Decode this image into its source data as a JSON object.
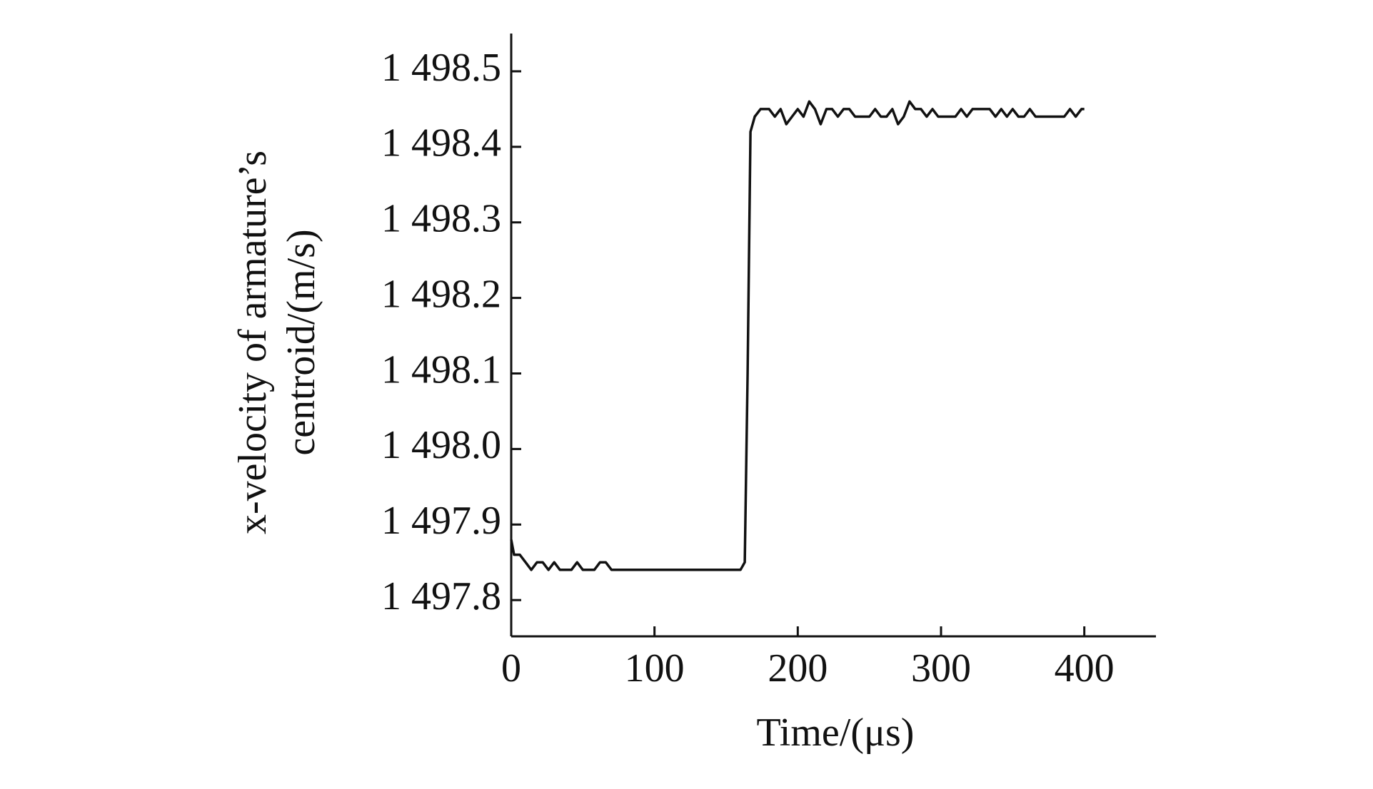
{
  "chart_data": {
    "type": "line",
    "xlabel": "Time/(μs)",
    "ylabel": [
      "x-velocity of armature’s",
      "centroid/(m/s)"
    ],
    "xlim": [
      0,
      450
    ],
    "xticks": [
      0,
      100,
      200,
      300,
      400
    ],
    "ylim": [
      1497.752,
      1498.55
    ],
    "yticks": [
      {
        "value": 1497.8,
        "label": "1 497.8"
      },
      {
        "value": 1497.9,
        "label": "1 497.9"
      },
      {
        "value": 1498.0,
        "label": "1 498.0"
      },
      {
        "value": 1498.1,
        "label": "1 498.1"
      },
      {
        "value": 1498.2,
        "label": "1 498.2"
      },
      {
        "value": 1498.3,
        "label": "1 498.3"
      },
      {
        "value": 1498.4,
        "label": "1 498.4"
      },
      {
        "value": 1498.5,
        "label": "1 498.5"
      }
    ],
    "series": [
      {
        "color": "#111111",
        "x": [
          0,
          2,
          6,
          10,
          14,
          18,
          22,
          26,
          30,
          34,
          38,
          42,
          46,
          50,
          54,
          58,
          62,
          66,
          70,
          160,
          163,
          165,
          167,
          170,
          174,
          180,
          184,
          188,
          192,
          196,
          200,
          204,
          208,
          212,
          216,
          220,
          224,
          228,
          232,
          236,
          240,
          250,
          254,
          258,
          262,
          266,
          270,
          274,
          278,
          282,
          286,
          290,
          294,
          298,
          310,
          314,
          318,
          322,
          334,
          338,
          342,
          346,
          350,
          354,
          358,
          362,
          366,
          386,
          390,
          394,
          398,
          400
        ],
        "values": [
          1497.88,
          1497.86,
          1497.86,
          1497.85,
          1497.84,
          1497.85,
          1497.85,
          1497.84,
          1497.85,
          1497.84,
          1497.84,
          1497.84,
          1497.85,
          1497.84,
          1497.84,
          1497.84,
          1497.85,
          1497.85,
          1497.84,
          1497.84,
          1497.85,
          1498.1,
          1498.42,
          1498.44,
          1498.45,
          1498.45,
          1498.44,
          1498.45,
          1498.43,
          1498.44,
          1498.45,
          1498.44,
          1498.46,
          1498.45,
          1498.43,
          1498.45,
          1498.45,
          1498.44,
          1498.45,
          1498.45,
          1498.44,
          1498.44,
          1498.45,
          1498.44,
          1498.44,
          1498.45,
          1498.43,
          1498.44,
          1498.46,
          1498.45,
          1498.45,
          1498.44,
          1498.45,
          1498.44,
          1498.44,
          1498.45,
          1498.44,
          1498.45,
          1498.45,
          1498.44,
          1498.45,
          1498.44,
          1498.45,
          1498.44,
          1498.44,
          1498.45,
          1498.44,
          1498.44,
          1498.45,
          1498.44,
          1498.45,
          1498.45
        ]
      }
    ]
  }
}
